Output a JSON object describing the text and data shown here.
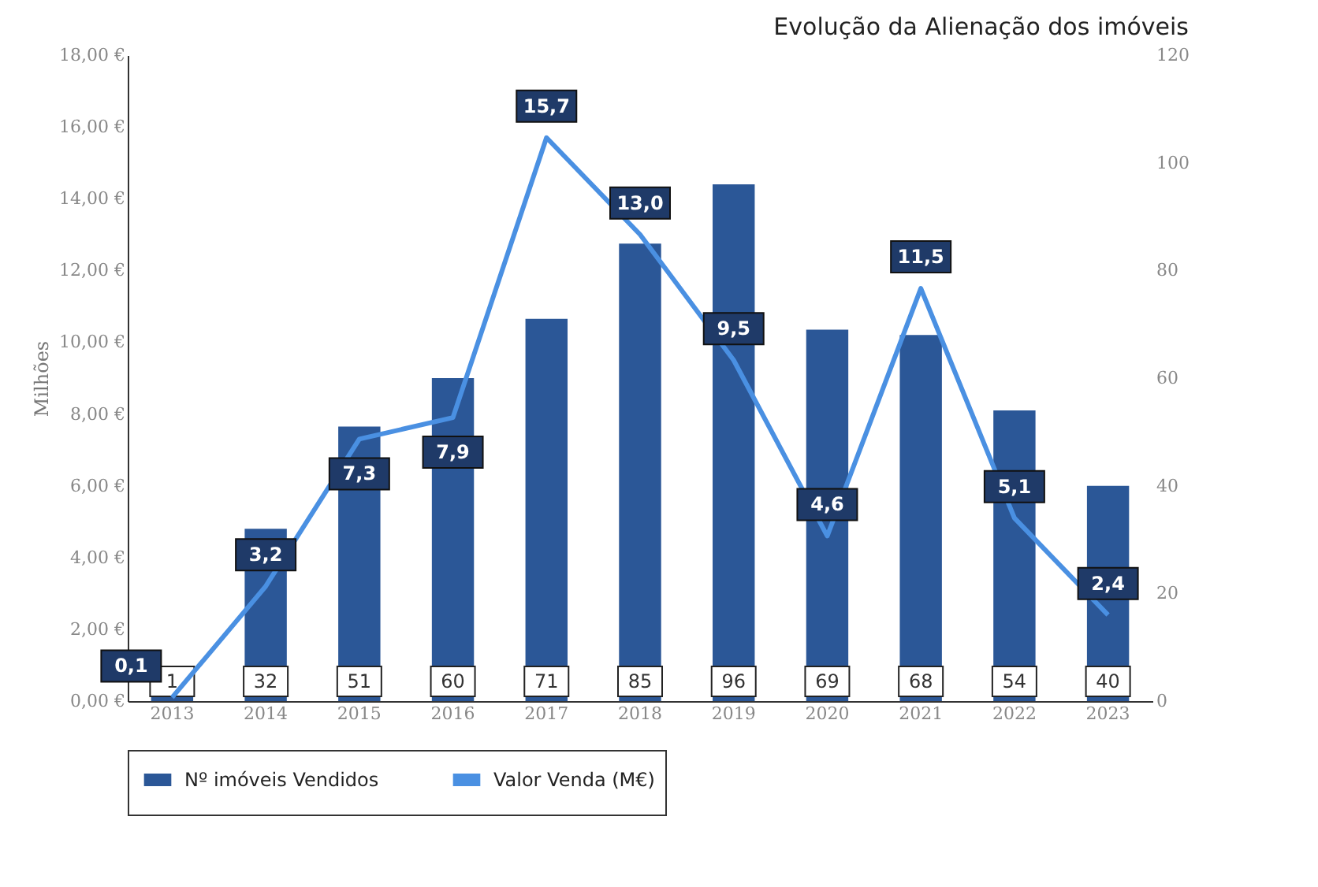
{
  "chart_data": {
    "type": "bar",
    "title": "Evolução da Alienação dos imóveis",
    "ylabel": "Milhões",
    "categories": [
      "2013",
      "2014",
      "2015",
      "2016",
      "2017",
      "2018",
      "2019",
      "2020",
      "2021",
      "2022",
      "2023"
    ],
    "series": [
      {
        "name": "Nº imóveis Vendidos",
        "axis": "y2",
        "color": "#2b5797",
        "values": [
          1,
          32,
          51,
          60,
          71,
          85,
          96,
          69,
          68,
          54,
          40
        ],
        "value_labels": [
          "1",
          "32",
          "51",
          "60",
          "71",
          "85",
          "96",
          "69",
          "68",
          "54",
          "40"
        ]
      },
      {
        "name": "Valor Venda (M€)",
        "type": "line",
        "color": "#4a90e2",
        "values": [
          0.1,
          3.2,
          7.3,
          7.9,
          15.7,
          13.0,
          9.5,
          4.6,
          11.5,
          5.1,
          2.4
        ],
        "value_labels": [
          "0,1",
          "3,2",
          "7,3",
          "7,9",
          "15,7",
          "13,0",
          "9,5",
          "4,6",
          "11,5",
          "5,1",
          "2,4"
        ]
      }
    ],
    "ylim": [
      0,
      18
    ],
    "yticks": [
      {
        "value": 0,
        "label": "0,00 €"
      },
      {
        "value": 2,
        "label": "2,00 €"
      },
      {
        "value": 4,
        "label": "4,00 €"
      },
      {
        "value": 6,
        "label": "6,00 €"
      },
      {
        "value": 8,
        "label": "8,00 €"
      },
      {
        "value": 10,
        "label": "10,00 €"
      },
      {
        "value": 12,
        "label": "12,00 €"
      },
      {
        "value": 14,
        "label": "14,00 €"
      },
      {
        "value": 16,
        "label": "16,00 €"
      },
      {
        "value": 18,
        "label": "18,00 €"
      }
    ],
    "y2lim": [
      0,
      120
    ],
    "y2ticks": [
      0,
      20,
      40,
      60,
      80,
      100,
      120
    ],
    "legend": "bottom",
    "grid": false,
    "marker": "none",
    "line_style": "solid"
  }
}
